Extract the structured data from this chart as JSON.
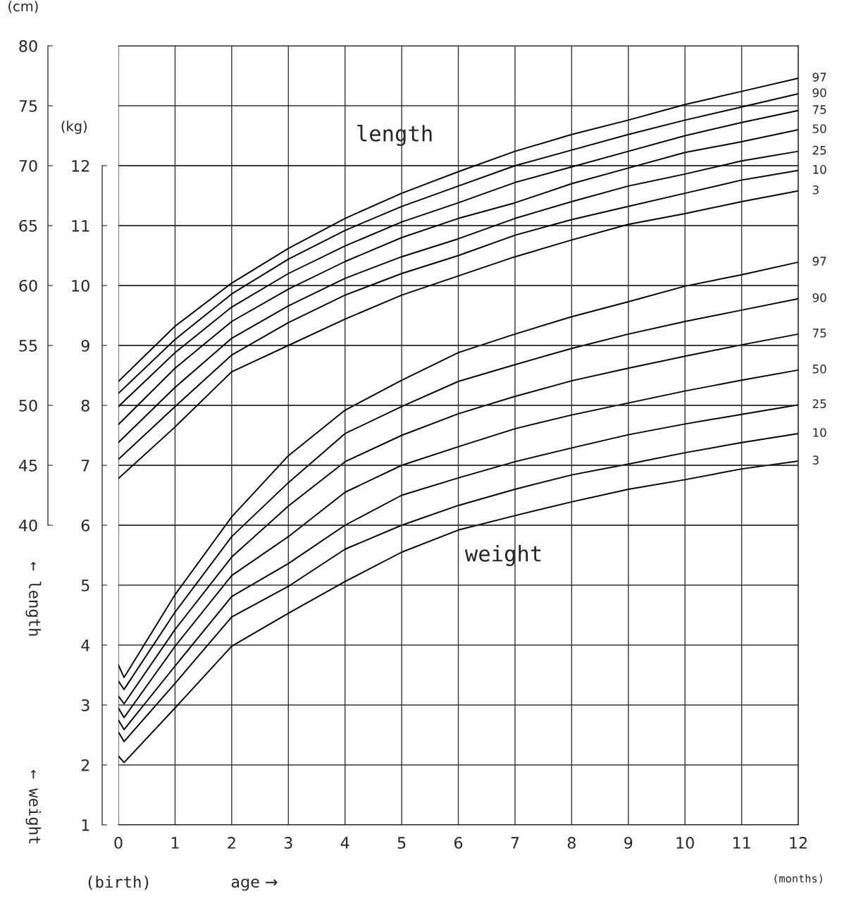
{
  "chart_data": {
    "type": "line",
    "xlabel": "age →",
    "ylabel": "(kg)",
    "y2label": "(cm)",
    "xlim": [
      0,
      12
    ],
    "xticks": [
      0,
      1,
      2,
      3,
      4,
      5,
      6,
      7,
      8,
      9,
      10,
      11,
      12
    ],
    "ylim": [
      1,
      14
    ],
    "yticks": [
      1,
      2,
      3,
      4,
      5,
      6,
      7,
      8,
      9,
      10,
      11,
      12
    ],
    "y2lim": [
      15,
      80
    ],
    "y2ticks": [
      40,
      45,
      50,
      55,
      60,
      65,
      70,
      75,
      80
    ],
    "grid": true,
    "annotations": [
      "length",
      "weight",
      "(birth)",
      "(months)",
      "← length",
      "← weight"
    ],
    "series": [
      {
        "name": "97",
        "axis": "y2",
        "color": "#000000",
        "x": [
          0,
          1,
          2,
          3,
          4,
          5,
          6,
          7,
          8,
          9,
          10,
          11,
          12
        ],
        "values": [
          52.0,
          56.6,
          60.2,
          63.1,
          65.6,
          67.7,
          69.5,
          71.2,
          72.6,
          73.8,
          75.1,
          76.2,
          77.3
        ]
      },
      {
        "name": "90",
        "axis": "y2",
        "color": "#000000",
        "x": [
          0,
          1,
          2,
          3,
          4,
          5,
          6,
          7,
          8,
          9,
          10,
          11,
          12
        ],
        "values": [
          51.0,
          55.5,
          59.3,
          62.2,
          64.6,
          66.6,
          68.3,
          70.0,
          71.3,
          72.6,
          73.8,
          74.9,
          76.0
        ]
      },
      {
        "name": "75",
        "axis": "y2",
        "color": "#000000",
        "x": [
          0,
          1,
          2,
          3,
          4,
          5,
          6,
          7,
          8,
          9,
          10,
          11,
          12
        ],
        "values": [
          49.9,
          54.4,
          58.2,
          61.0,
          63.3,
          65.3,
          66.9,
          68.6,
          69.9,
          71.2,
          72.5,
          73.6,
          74.6
        ]
      },
      {
        "name": "50",
        "axis": "y2",
        "color": "#000000",
        "x": [
          0,
          1,
          2,
          3,
          4,
          5,
          6,
          7,
          8,
          9,
          10,
          11,
          12
        ],
        "values": [
          48.4,
          53.1,
          57.0,
          59.7,
          62.0,
          64.0,
          65.6,
          66.9,
          68.5,
          69.8,
          71.1,
          72.0,
          73.0
        ]
      },
      {
        "name": "25",
        "axis": "y2",
        "color": "#000000",
        "x": [
          0,
          1,
          2,
          3,
          4,
          5,
          6,
          7,
          8,
          9,
          10,
          11,
          12
        ],
        "values": [
          46.9,
          51.5,
          55.6,
          58.3,
          60.6,
          62.4,
          63.9,
          65.6,
          67.0,
          68.3,
          69.3,
          70.4,
          71.2
        ]
      },
      {
        "name": "10",
        "axis": "y2",
        "color": "#000000",
        "x": [
          0,
          1,
          2,
          3,
          4,
          5,
          6,
          7,
          8,
          9,
          10,
          11,
          12
        ],
        "values": [
          45.5,
          49.9,
          54.2,
          56.9,
          59.2,
          61.0,
          62.5,
          64.2,
          65.5,
          66.6,
          67.7,
          68.8,
          69.6
        ]
      },
      {
        "name": "3",
        "axis": "y2",
        "color": "#000000",
        "x": [
          0,
          1,
          2,
          3,
          4,
          5,
          6,
          7,
          8,
          9,
          10,
          11,
          12
        ],
        "values": [
          43.9,
          48.2,
          52.8,
          55.0,
          57.2,
          59.2,
          60.8,
          62.4,
          63.8,
          65.1,
          66.0,
          67.0,
          67.9
        ]
      },
      {
        "name": "97",
        "color": "#000000",
        "x": [
          0,
          0.1,
          1,
          2,
          3,
          4,
          5,
          6,
          7,
          8,
          9,
          10,
          11,
          12
        ],
        "values": [
          3.67,
          3.46,
          4.84,
          6.14,
          7.16,
          7.92,
          8.42,
          8.88,
          9.19,
          9.48,
          9.73,
          9.99,
          10.18,
          10.39
        ]
      },
      {
        "name": "90",
        "color": "#000000",
        "x": [
          0,
          0.1,
          1,
          2,
          3,
          4,
          5,
          6,
          7,
          8,
          9,
          10,
          11,
          12
        ],
        "values": [
          3.4,
          3.26,
          4.55,
          5.81,
          6.71,
          7.53,
          7.98,
          8.4,
          8.68,
          8.95,
          9.19,
          9.4,
          9.59,
          9.78
        ]
      },
      {
        "name": "75",
        "color": "#000000",
        "x": [
          0,
          0.1,
          1,
          2,
          3,
          4,
          5,
          6,
          7,
          8,
          9,
          10,
          11,
          12
        ],
        "values": [
          3.15,
          3.02,
          4.26,
          5.47,
          6.32,
          7.06,
          7.5,
          7.86,
          8.15,
          8.41,
          8.62,
          8.82,
          9.01,
          9.19
        ]
      },
      {
        "name": "50",
        "color": "#000000",
        "x": [
          0,
          0.1,
          1,
          2,
          3,
          4,
          5,
          6,
          7,
          8,
          9,
          10,
          11,
          12
        ],
        "values": [
          2.95,
          2.79,
          3.98,
          5.16,
          5.81,
          6.55,
          7.0,
          7.31,
          7.61,
          7.84,
          8.04,
          8.24,
          8.42,
          8.59
        ]
      },
      {
        "name": "25",
        "color": "#000000",
        "x": [
          0,
          0.1,
          1,
          2,
          3,
          4,
          5,
          6,
          7,
          8,
          9,
          10,
          11,
          12
        ],
        "values": [
          2.75,
          2.59,
          3.65,
          4.81,
          5.36,
          6.0,
          6.5,
          6.79,
          7.06,
          7.29,
          7.51,
          7.69,
          7.85,
          8.01
        ]
      },
      {
        "name": "10",
        "color": "#000000",
        "x": [
          0,
          0.1,
          1,
          2,
          3,
          4,
          5,
          6,
          7,
          8,
          9,
          10,
          11,
          12
        ],
        "values": [
          2.55,
          2.39,
          3.36,
          4.47,
          4.98,
          5.6,
          6.0,
          6.33,
          6.6,
          6.84,
          7.02,
          7.21,
          7.38,
          7.53
        ]
      },
      {
        "name": "3",
        "color": "#000000",
        "x": [
          0,
          0.1,
          1,
          2,
          3,
          4,
          5,
          6,
          7,
          8,
          9,
          10,
          11,
          12
        ],
        "values": [
          2.15,
          2.04,
          2.95,
          3.98,
          4.53,
          5.06,
          5.55,
          5.92,
          6.16,
          6.39,
          6.6,
          6.76,
          6.94,
          7.07
        ]
      }
    ]
  }
}
